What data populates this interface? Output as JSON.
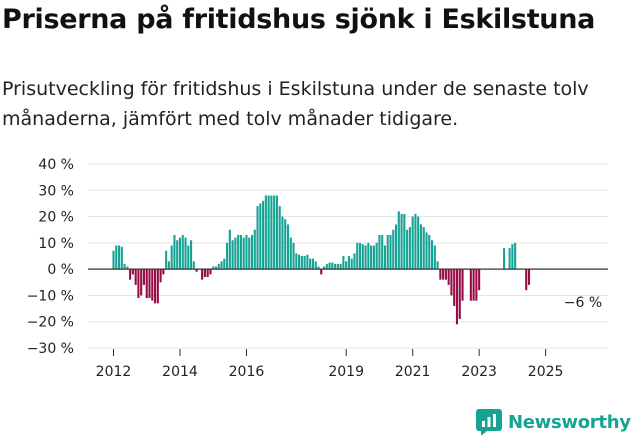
{
  "title": "Priserna på fritidshus sjönk i Eskilstuna",
  "subtitle": "Prisutveckling för fritidshus i Eskilstuna under de senaste tolv månaderna, jämfört med tolv månader tidigare.",
  "brand": "Newsworthy",
  "colors": {
    "positive": "#16a394",
    "negative": "#960c47",
    "grid": "#e3e3e3",
    "axis": "#333333",
    "brand": "#16a394"
  },
  "chart_data": {
    "type": "bar",
    "title": "Priserna på fritidshus sjönk i Eskilstuna",
    "xlabel": "",
    "ylabel": "",
    "ylim": [
      -30,
      40
    ],
    "yticks": [
      40,
      30,
      20,
      10,
      0,
      -10,
      -20,
      -30
    ],
    "ytick_labels": [
      "40 %",
      "30 %",
      "20 %",
      "10 %",
      "0 %",
      "−10 %",
      "−20 %",
      "−30 %"
    ],
    "xtick_labels": [
      "2012",
      "2014",
      "2016",
      "2019",
      "2021",
      "2023",
      "2025"
    ],
    "annotation": "−6 %",
    "series": [
      {
        "name": "Prisutveckling",
        "unit": "%",
        "start": "2012-01",
        "values": [
          7,
          9,
          9,
          8.5,
          2,
          1,
          -4,
          -2,
          -6,
          -11,
          -10,
          -6,
          -11,
          -11,
          -12,
          -13,
          -13,
          -5,
          -2,
          7,
          3,
          9,
          13,
          11,
          12,
          13,
          12,
          9,
          11,
          3,
          -1,
          null,
          -4,
          -3,
          -3,
          -2,
          1,
          1,
          2,
          3,
          4,
          10,
          15,
          11,
          12,
          13,
          13,
          12,
          13,
          12,
          13,
          15,
          24,
          25,
          26,
          28,
          28,
          28,
          28,
          28,
          24,
          20,
          19,
          17,
          12,
          10,
          6,
          5.5,
          5,
          5,
          5.5,
          4,
          4,
          3,
          1,
          -2,
          1,
          2,
          2.5,
          2.5,
          2,
          2,
          2,
          5,
          3,
          5,
          4,
          6,
          10,
          10,
          9.5,
          9,
          10,
          9,
          9,
          10,
          13,
          13,
          9,
          13,
          13,
          15,
          17,
          22,
          21,
          21,
          15,
          16,
          20,
          21,
          20,
          17,
          16,
          14,
          13,
          11,
          9,
          3,
          -4,
          -4,
          -4,
          -6,
          -10,
          -14,
          -21,
          -19,
          -12,
          null,
          null,
          -12,
          -12,
          -12,
          -8,
          null,
          null,
          null,
          null,
          null,
          null,
          null,
          null,
          8,
          null,
          8,
          9.5,
          10,
          null,
          null,
          null,
          -8,
          -6
        ]
      }
    ]
  }
}
